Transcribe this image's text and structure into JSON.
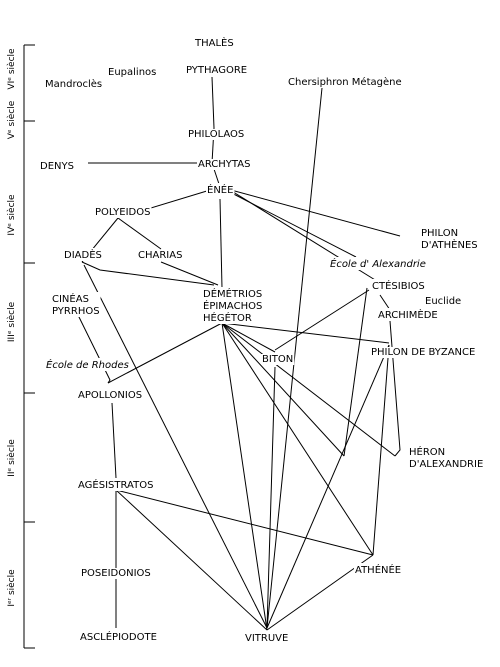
{
  "centuries": [
    {
      "id": "c6",
      "label": "VIᵉ siècle"
    },
    {
      "id": "c5",
      "label": "Vᵉ siècle"
    },
    {
      "id": "c4",
      "label": "IVᵉ siècle"
    },
    {
      "id": "c3",
      "label": "IIIᵉ siècle"
    },
    {
      "id": "c2",
      "label": "IIᵉ siècle"
    },
    {
      "id": "c1",
      "label": "Iᵉʳ siècle"
    }
  ],
  "nodes": {
    "thales": {
      "lines": [
        "THALÈS"
      ]
    },
    "pythagore": {
      "lines": [
        "PYTHAGORE"
      ]
    },
    "eupalinos": {
      "lines": [
        "Eupalinos"
      ]
    },
    "mandrocles": {
      "lines": [
        "Mandroclès"
      ]
    },
    "chersiphron": {
      "lines": [
        "Chersiphron Métagène"
      ]
    },
    "philolaos": {
      "lines": [
        "PHILOLAOS"
      ]
    },
    "denys": {
      "lines": [
        "DENYS"
      ]
    },
    "archytas": {
      "lines": [
        "ARCHYTAS"
      ]
    },
    "enee": {
      "lines": [
        "ÉNÉE"
      ]
    },
    "polyeidos": {
      "lines": [
        "POLYEIDOS"
      ]
    },
    "philon_athenes": {
      "lines": [
        "PHILON",
        "D'ATHÈNES"
      ]
    },
    "ecole_alexandrie": {
      "lines": [
        "École d' Alexandrie"
      ]
    },
    "diades": {
      "lines": [
        "DIADÈS"
      ]
    },
    "charias": {
      "lines": [
        "CHARIAS"
      ]
    },
    "ctesibios": {
      "lines": [
        "CTÉSIBIOS"
      ]
    },
    "euclide": {
      "lines": [
        "Euclide"
      ]
    },
    "archimede": {
      "lines": [
        "ARCHIMÈDE"
      ]
    },
    "cineas": {
      "lines": [
        "CINÉAS",
        "PYRRHOS"
      ]
    },
    "demetrios": {
      "lines": [
        "DÉMÉTRIOS",
        "ÉPIMACHOS",
        "HÉGÉTOR"
      ]
    },
    "biton": {
      "lines": [
        "BITON"
      ]
    },
    "philon_byzance": {
      "lines": [
        "PHILON DE BYZANCE"
      ]
    },
    "ecole_rhodes": {
      "lines": [
        "École de Rhodes"
      ]
    },
    "apollonios": {
      "lines": [
        "APOLLONIOS"
      ]
    },
    "heron": {
      "lines": [
        "HÉRON",
        "D'ALEXANDRIE"
      ]
    },
    "agesistratos": {
      "lines": [
        "AGÉSISTRATOS"
      ]
    },
    "poseidonios": {
      "lines": [
        "POSEIDONIOS"
      ]
    },
    "athenee": {
      "lines": [
        "ATHÉNÉE"
      ]
    },
    "asclepiodote": {
      "lines": [
        "ASCLÉPIODOTE"
      ]
    },
    "vitruve": {
      "lines": [
        "VITRUVE"
      ]
    }
  },
  "edges": [
    [
      "pythagore",
      "philolaos"
    ],
    [
      "philolaos",
      "archytas"
    ],
    [
      "denys",
      "archytas"
    ],
    [
      "archytas",
      "enee"
    ],
    [
      "enee",
      "polyeidos"
    ],
    [
      "enee",
      "demetrios"
    ],
    [
      "enee",
      "philon_athenes"
    ],
    [
      "enee",
      "ecole_alexandrie"
    ],
    [
      "enee",
      "philon_byzance"
    ],
    [
      "polyeidos",
      "diades"
    ],
    [
      "polyeidos",
      "charias"
    ],
    [
      "diades",
      "demetrios"
    ],
    [
      "charias",
      "demetrios"
    ],
    [
      "diades",
      "vitruve"
    ],
    [
      "chersiphron",
      "vitruve"
    ],
    [
      "cineas",
      "ecole_rhodes"
    ],
    [
      "ecole_rhodes",
      "demetrios"
    ],
    [
      "demetrios",
      "philon_byzance"
    ],
    [
      "demetrios",
      "biton"
    ],
    [
      "demetrios",
      "vitruve"
    ],
    [
      "demetrios",
      "heron"
    ],
    [
      "demetrios",
      "athenee"
    ],
    [
      "demetrios",
      "heron_junction"
    ],
    [
      "ctesibios",
      "biton"
    ],
    [
      "ctesibios",
      "heron_junction"
    ],
    [
      "ctesibios",
      "archimede"
    ],
    [
      "archimede",
      "heron"
    ],
    [
      "philon_byzance",
      "vitruve"
    ],
    [
      "philon_byzance",
      "athenee"
    ],
    [
      "biton",
      "vitruve"
    ],
    [
      "apollonios",
      "agesistratos"
    ],
    [
      "agesistratos",
      "poseidonios"
    ],
    [
      "agesistratos",
      "athenee"
    ],
    [
      "agesistratos",
      "vitruve"
    ],
    [
      "poseidonios",
      "asclepiodote"
    ],
    [
      "athenee",
      "vitruve"
    ]
  ]
}
